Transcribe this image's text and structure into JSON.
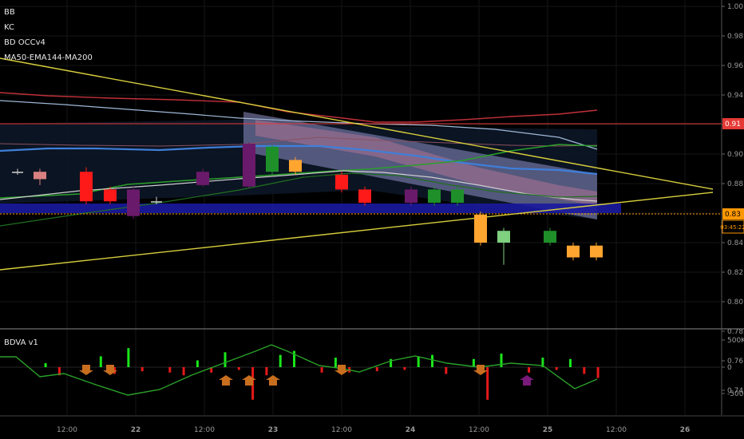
{
  "indicators": [
    "BB",
    "KC",
    "BD OCCv4",
    "MA50-EMA144-MA200"
  ],
  "sub_indicator": "BDVA v1",
  "price_axis": {
    "ticks": [
      "1.00",
      "0.98",
      "0.96",
      "0.94",
      "0.92",
      "0.90",
      "0.88",
      "0.86",
      "0.84",
      "0.82",
      "0.80",
      "0.78",
      "0.76",
      "0.74"
    ],
    "ylim": [
      0.74,
      1.0
    ]
  },
  "price_tags": {
    "resistance": {
      "label": "0.91",
      "value": 0.91,
      "color": "#e53935"
    },
    "last": {
      "label": "0.83",
      "value": 0.83,
      "color": "#ff9800"
    },
    "countdown": {
      "label": "03:45:22",
      "color": "#ff9800"
    }
  },
  "volume_axis": {
    "ticks": [
      "500K",
      "0",
      "-500K"
    ]
  },
  "time_axis": {
    "labels": [
      "12:00",
      "22",
      "12:00",
      "23",
      "12:00",
      "24",
      "12:00",
      "25",
      "12:00",
      "26"
    ]
  },
  "colors": {
    "background": "#000000",
    "trendline": "#d9cf3c",
    "green_candle": "#1f8f2a",
    "light_green_candle": "#7fd07f",
    "red_candle": "#ff1a1a",
    "pink_candle": "#d98080",
    "purple_candle": "#6a1a6a",
    "orange_candle": "#ffa530",
    "blue_band": "#1a1a9e",
    "ma_line": "#3f7fd9"
  },
  "chart_data": [
    {
      "type": "candlestick",
      "title": "",
      "ylim": [
        0.74,
        1.0
      ],
      "candles": [
        {
          "t": 1,
          "o": 0.888,
          "c": 0.888,
          "h": 0.89,
          "l": 0.886,
          "color": "white"
        },
        {
          "t": 2,
          "o": 0.888,
          "c": 0.883,
          "h": 0.89,
          "l": 0.879,
          "color": "pink"
        },
        {
          "t": 3,
          "o": 0.888,
          "c": 0.868,
          "h": 0.891,
          "l": 0.866,
          "color": "red"
        },
        {
          "t": 4,
          "o": 0.876,
          "c": 0.868,
          "h": 0.878,
          "l": 0.866,
          "color": "red"
        },
        {
          "t": 5,
          "o": 0.876,
          "c": 0.858,
          "h": 0.878,
          "l": 0.856,
          "color": "purple"
        },
        {
          "t": 6,
          "o": 0.868,
          "c": 0.868,
          "h": 0.871,
          "l": 0.866,
          "color": "white"
        },
        {
          "t": 7,
          "o": 0.879,
          "c": 0.888,
          "h": 0.89,
          "l": 0.878,
          "color": "purple"
        },
        {
          "t": 8,
          "o": 0.878,
          "c": 0.907,
          "h": 0.908,
          "l": 0.877,
          "color": "purple"
        },
        {
          "t": 9,
          "o": 0.888,
          "c": 0.905,
          "h": 0.906,
          "l": 0.886,
          "color": "green"
        },
        {
          "t": 10,
          "o": 0.896,
          "c": 0.888,
          "h": 0.898,
          "l": 0.886,
          "color": "orange"
        },
        {
          "t": 11,
          "o": 0.886,
          "c": 0.876,
          "h": 0.888,
          "l": 0.874,
          "color": "red"
        },
        {
          "t": 12,
          "o": 0.876,
          "c": 0.867,
          "h": 0.878,
          "l": 0.865,
          "color": "red"
        },
        {
          "t": 13,
          "o": 0.876,
          "c": 0.867,
          "h": 0.878,
          "l": 0.865,
          "color": "purple"
        },
        {
          "t": 14,
          "o": 0.867,
          "c": 0.876,
          "h": 0.878,
          "l": 0.865,
          "color": "green"
        },
        {
          "t": 15,
          "o": 0.867,
          "c": 0.876,
          "h": 0.878,
          "l": 0.865,
          "color": "green"
        },
        {
          "t": 16,
          "o": 0.859,
          "c": 0.84,
          "h": 0.861,
          "l": 0.838,
          "color": "orange"
        },
        {
          "t": 17,
          "o": 0.84,
          "c": 0.848,
          "h": 0.85,
          "l": 0.825,
          "color": "lightgreen"
        },
        {
          "t": 18,
          "o": 0.84,
          "c": 0.848,
          "h": 0.85,
          "l": 0.838,
          "color": "green"
        },
        {
          "t": 19,
          "o": 0.838,
          "c": 0.83,
          "h": 0.84,
          "l": 0.828,
          "color": "orange"
        },
        {
          "t": 20,
          "o": 0.838,
          "c": 0.83,
          "h": 0.84,
          "l": 0.828,
          "color": "orange"
        }
      ]
    },
    {
      "type": "bar",
      "title": "BDVA v1",
      "values": [
        0,
        0,
        15,
        -30,
        0,
        -10,
        40,
        -25,
        70,
        -15,
        0,
        -20,
        -30,
        25,
        -20,
        55,
        -10,
        -120,
        -30,
        45,
        60,
        0,
        -20,
        35,
        -20,
        0,
        -15,
        30,
        -10,
        40,
        45,
        -25,
        0,
        30,
        -120,
        50,
        0,
        -20,
        35,
        -10,
        30,
        -25,
        -40
      ]
    }
  ]
}
